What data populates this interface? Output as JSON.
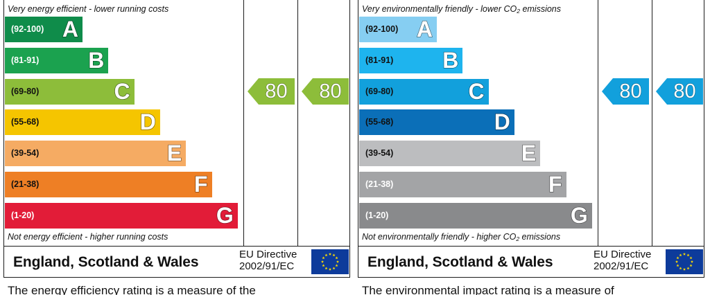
{
  "chart_data": [
    {
      "type": "bar",
      "categories": [
        "A",
        "B",
        "C",
        "D",
        "E",
        "F",
        "G"
      ],
      "ranges": [
        "(92-100)",
        "(81-91)",
        "(69-80)",
        "(55-68)",
        "(39-54)",
        "(21-38)",
        "(1-20)"
      ],
      "band_colors": [
        "#0f8c4a",
        "#1ba24f",
        "#8dbd3a",
        "#f5c500",
        "#f5ab63",
        "#ee7f25",
        "#e21c38"
      ],
      "range_text_colors": [
        "#ffffff",
        "#ffffff",
        "#111111",
        "#111111",
        "#111111",
        "#111111",
        "#ffffff"
      ],
      "band_length_rank": [
        1,
        2,
        3,
        4,
        5,
        6,
        7
      ],
      "top_note": "Very energy efficient - lower running costs",
      "bottom_note": "Not energy efficient - higher running costs",
      "current": {
        "value": 80,
        "band": "C",
        "color": "#8dbd3a"
      },
      "potential": {
        "value": 80,
        "band": "C",
        "color": "#8dbd3a"
      },
      "footer": {
        "region": "England, Scotland & Wales",
        "directive_line1": "EU Directive",
        "directive_line2": "2002/91/EC"
      },
      "caption": "The energy efficiency rating is a measure of the"
    },
    {
      "type": "bar",
      "categories": [
        "A",
        "B",
        "C",
        "D",
        "E",
        "F",
        "G"
      ],
      "ranges": [
        "(92-100)",
        "(81-91)",
        "(69-80)",
        "(55-68)",
        "(39-54)",
        "(21-38)",
        "(1-20)"
      ],
      "band_colors": [
        "#86cef2",
        "#1eb4ee",
        "#12a0dc",
        "#0b6fb8",
        "#bcbdbf",
        "#a3a4a6",
        "#898a8c"
      ],
      "range_text_colors": [
        "#111111",
        "#111111",
        "#111111",
        "#111111",
        "#111111",
        "#ffffff",
        "#ffffff"
      ],
      "band_length_rank": [
        1,
        2,
        3,
        4,
        5,
        6,
        7
      ],
      "top_note_pre": "Very environmentally friendly - lower CO",
      "top_note_sub": "2",
      "top_note_post": " emissions",
      "bottom_note_pre": "Not environmentally friendly - higher CO",
      "bottom_note_sub": "2",
      "bottom_note_post": " emissions",
      "current": {
        "value": 80,
        "band": "C",
        "color": "#12a0dc"
      },
      "potential": {
        "value": 80,
        "band": "C",
        "color": "#12a0dc"
      },
      "footer": {
        "region": "England, Scotland & Wales",
        "directive_line1": "EU Directive",
        "directive_line2": "2002/91/EC"
      },
      "caption": "The environmental impact rating is a measure of"
    }
  ]
}
